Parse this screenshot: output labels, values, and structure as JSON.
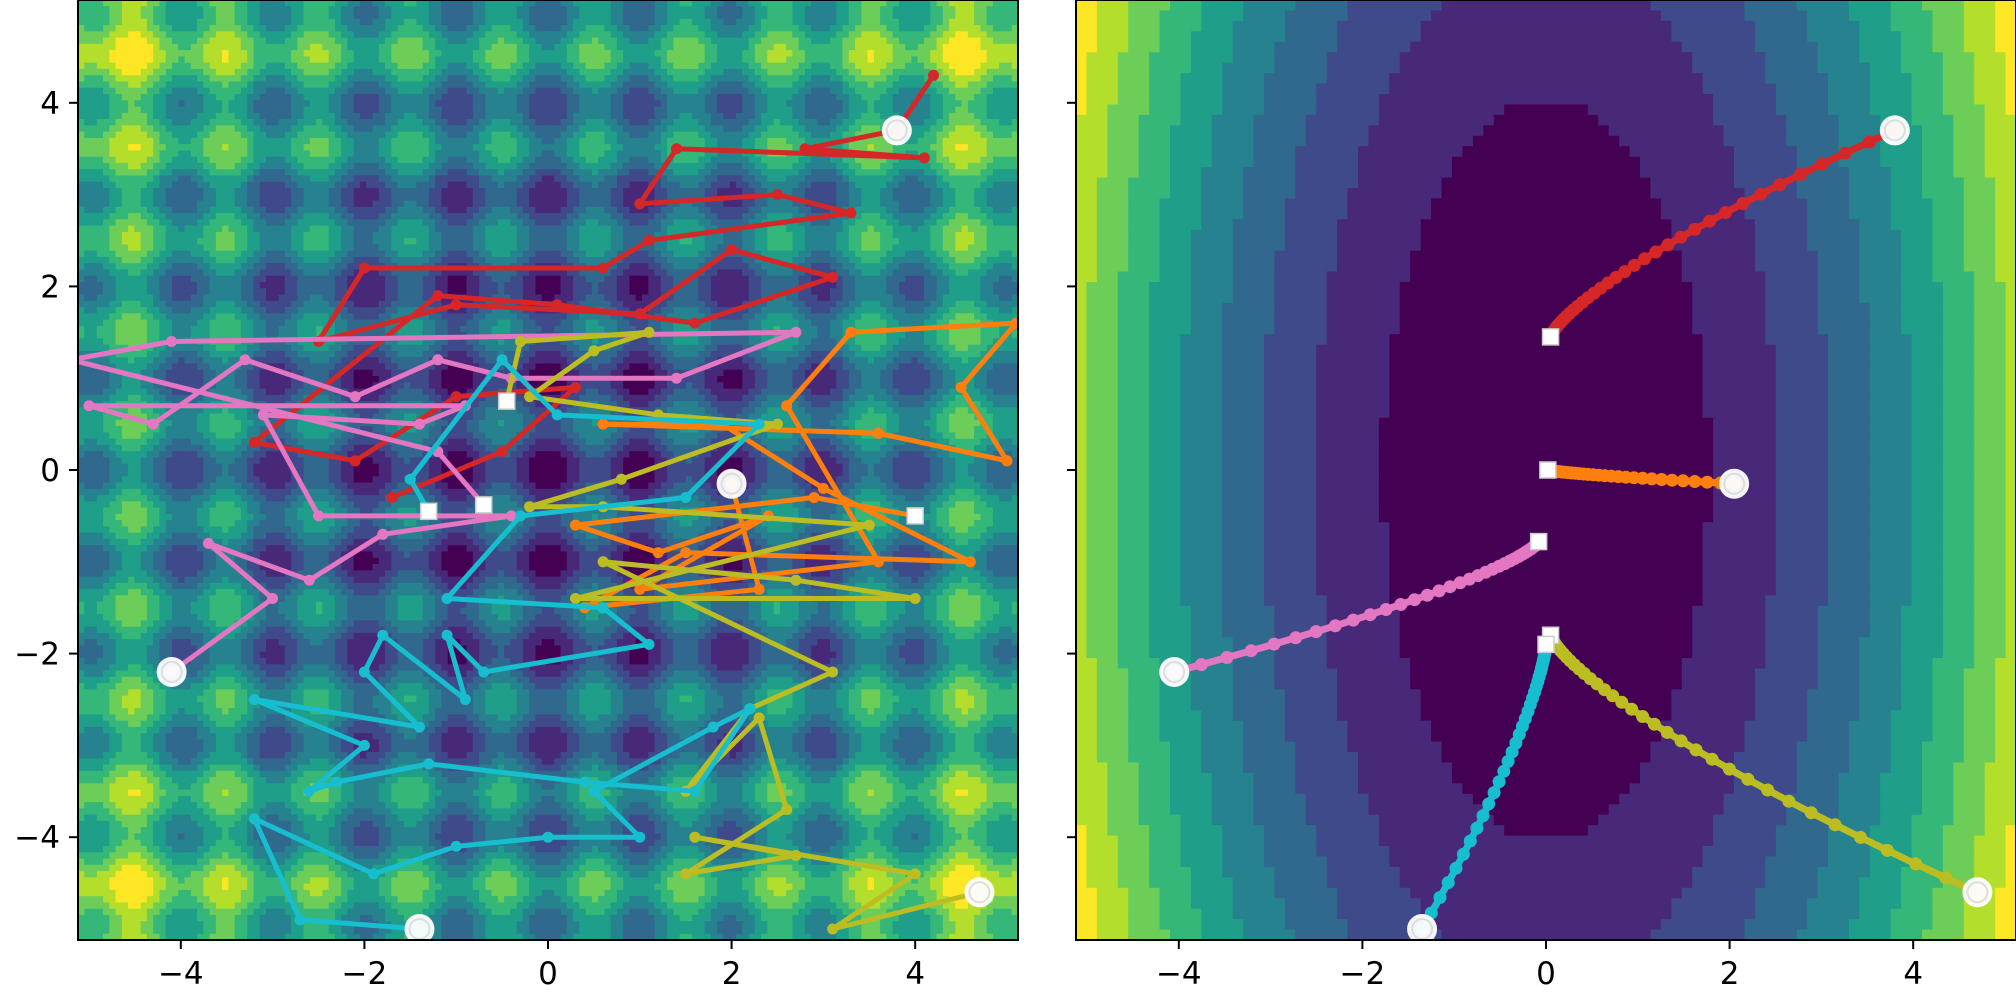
{
  "chart_data": [
    {
      "type": "contour",
      "xlim": [
        -5.12,
        5.12
      ],
      "ylim": [
        -5.12,
        5.12
      ],
      "xticks": [
        -4,
        -2,
        0,
        2,
        4
      ],
      "yticks": [
        -4,
        -2,
        0,
        2,
        4
      ],
      "xtick_labels": [
        "−4",
        "−2",
        "0",
        "2",
        "4"
      ],
      "ytick_labels": [
        "−4",
        "−2",
        "0",
        "2",
        "4"
      ],
      "colormap": "viridis",
      "series": [
        {
          "color": "#d62728",
          "start": [
            3.8,
            3.7
          ],
          "end": null,
          "points": [
            [
              4.2,
              4.3
            ],
            [
              3.8,
              3.7
            ],
            [
              2.8,
              3.5
            ],
            [
              4.1,
              3.4
            ],
            [
              1.4,
              3.5
            ],
            [
              1.0,
              2.9
            ],
            [
              2.5,
              3.0
            ],
            [
              3.3,
              2.8
            ],
            [
              1.1,
              2.5
            ],
            [
              0.6,
              2.2
            ],
            [
              -2.0,
              2.2
            ],
            [
              -2.5,
              1.4
            ],
            [
              -1.0,
              1.8
            ],
            [
              1.0,
              1.7
            ],
            [
              2.0,
              2.4
            ],
            [
              3.1,
              2.1
            ],
            [
              1.6,
              1.6
            ],
            [
              0.1,
              1.8
            ],
            [
              -1.2,
              1.9
            ],
            [
              -3.2,
              0.3
            ],
            [
              -2.1,
              0.1
            ],
            [
              -1.0,
              0.8
            ],
            [
              0.3,
              0.9
            ],
            [
              -0.5,
              0.2
            ],
            [
              -1.7,
              -0.3
            ]
          ]
        },
        {
          "color": "#ff7f0e",
          "start": [
            2.0,
            -0.15
          ],
          "end": [
            4.0,
            -0.5
          ],
          "points": [
            [
              2.0,
              -0.15
            ],
            [
              2.3,
              -1.3
            ],
            [
              0.4,
              -1.5
            ],
            [
              1.5,
              -0.9
            ],
            [
              4.6,
              -1.0
            ],
            [
              3.0,
              -0.2
            ],
            [
              1.9,
              0.5
            ],
            [
              0.6,
              0.5
            ],
            [
              3.6,
              0.4
            ],
            [
              5.0,
              0.1
            ],
            [
              4.5,
              0.9
            ],
            [
              5.1,
              1.6
            ],
            [
              3.3,
              1.5
            ],
            [
              2.6,
              0.7
            ],
            [
              3.6,
              -1.0
            ],
            [
              1.0,
              -1.3
            ],
            [
              2.4,
              -0.5
            ],
            [
              1.2,
              -0.9
            ],
            [
              0.3,
              -0.6
            ],
            [
              2.9,
              -0.3
            ],
            [
              4.0,
              -0.5
            ]
          ]
        },
        {
          "color": "#e377c2",
          "start": [
            -4.1,
            -2.2
          ],
          "end": [
            -0.7,
            -0.38
          ],
          "points": [
            [
              -4.1,
              -2.2
            ],
            [
              -3.0,
              -1.4
            ],
            [
              -3.7,
              -0.8
            ],
            [
              -2.6,
              -1.2
            ],
            [
              -1.8,
              -0.7
            ],
            [
              -0.4,
              -0.5
            ],
            [
              -2.5,
              -0.5
            ],
            [
              -3.1,
              0.6
            ],
            [
              -1.4,
              0.5
            ],
            [
              -0.9,
              0.7
            ],
            [
              -5.0,
              0.7
            ],
            [
              -4.3,
              0.5
            ],
            [
              -3.3,
              1.2
            ],
            [
              -2.1,
              0.8
            ],
            [
              -1.2,
              1.2
            ],
            [
              -0.4,
              1.0
            ],
            [
              1.4,
              1.0
            ],
            [
              2.7,
              1.5
            ],
            [
              -4.1,
              1.4
            ],
            [
              -5.2,
              1.2
            ],
            [
              -1.2,
              0.2
            ],
            [
              -0.7,
              -0.38
            ]
          ]
        },
        {
          "color": "#bcbd22",
          "start": [
            4.7,
            -4.6
          ],
          "end": [
            -0.45,
            0.75
          ],
          "points": [
            [
              4.7,
              -4.6
            ],
            [
              3.1,
              -5.0
            ],
            [
              4.0,
              -4.4
            ],
            [
              1.6,
              -4.0
            ],
            [
              2.7,
              -4.2
            ],
            [
              1.5,
              -4.4
            ],
            [
              2.6,
              -3.7
            ],
            [
              2.3,
              -2.7
            ],
            [
              1.5,
              -3.5
            ],
            [
              2.2,
              -2.6
            ],
            [
              3.1,
              -2.2
            ],
            [
              0.6,
              -1.0
            ],
            [
              2.7,
              -1.2
            ],
            [
              4.0,
              -1.4
            ],
            [
              0.3,
              -1.4
            ],
            [
              3.5,
              -0.6
            ],
            [
              0.6,
              -0.4
            ],
            [
              -0.2,
              -0.4
            ],
            [
              0.8,
              -0.1
            ],
            [
              2.5,
              0.5
            ],
            [
              1.2,
              0.6
            ],
            [
              -0.2,
              0.8
            ],
            [
              0.5,
              1.3
            ],
            [
              1.1,
              1.5
            ],
            [
              -0.3,
              1.4
            ],
            [
              -0.45,
              0.75
            ]
          ]
        },
        {
          "color": "#17becf",
          "start": [
            -1.4,
            -5.0
          ],
          "end": [
            -1.3,
            -0.45
          ],
          "points": [
            [
              -1.4,
              -5.0
            ],
            [
              -2.7,
              -4.9
            ],
            [
              -3.2,
              -3.8
            ],
            [
              -1.9,
              -4.4
            ],
            [
              -1.0,
              -4.1
            ],
            [
              0.0,
              -4.0
            ],
            [
              1.0,
              -4.0
            ],
            [
              0.5,
              -3.5
            ],
            [
              1.8,
              -2.8
            ],
            [
              2.2,
              -2.6
            ],
            [
              1.6,
              -3.5
            ],
            [
              0.4,
              -3.4
            ],
            [
              -1.3,
              -3.2
            ],
            [
              -2.3,
              -3.4
            ],
            [
              -2.6,
              -3.5
            ],
            [
              -2.0,
              -3.0
            ],
            [
              -3.2,
              -2.5
            ],
            [
              -1.4,
              -2.8
            ],
            [
              -2.0,
              -2.2
            ],
            [
              -1.8,
              -1.8
            ],
            [
              -0.9,
              -2.5
            ],
            [
              -1.1,
              -1.8
            ],
            [
              -0.7,
              -2.2
            ],
            [
              1.1,
              -1.9
            ],
            [
              0.6,
              -1.5
            ],
            [
              -1.1,
              -1.4
            ],
            [
              -0.3,
              -0.5
            ],
            [
              1.5,
              -0.3
            ],
            [
              2.3,
              0.5
            ],
            [
              0.1,
              0.6
            ],
            [
              -0.5,
              1.2
            ],
            [
              -1.5,
              -0.1
            ],
            [
              -1.3,
              -0.45
            ]
          ]
        }
      ]
    },
    {
      "type": "contour",
      "xlim": [
        -5.12,
        5.12
      ],
      "ylim": [
        -5.12,
        5.12
      ],
      "xticks": [
        -4,
        -2,
        0,
        2,
        4
      ],
      "yticks": [
        -4,
        -2,
        0,
        2,
        4
      ],
      "xtick_labels": [
        "−4",
        "−2",
        "0",
        "2",
        "4"
      ],
      "colormap": "viridis",
      "series": [
        {
          "color": "#d62728",
          "start": [
            3.8,
            3.7
          ],
          "end": [
            0.05,
            1.45
          ]
        },
        {
          "color": "#ff7f0e",
          "start": [
            2.05,
            -0.15
          ],
          "end": [
            0.02,
            0.0
          ]
        },
        {
          "color": "#e377c2",
          "start": [
            -4.05,
            -2.2
          ],
          "end": [
            -0.08,
            -0.78
          ]
        },
        {
          "color": "#bcbd22",
          "start": [
            4.7,
            -4.6
          ],
          "end": [
            0.05,
            -1.8
          ]
        },
        {
          "color": "#17becf",
          "start": [
            -1.35,
            -5.0
          ],
          "end": [
            0.0,
            -1.9
          ]
        }
      ]
    }
  ]
}
